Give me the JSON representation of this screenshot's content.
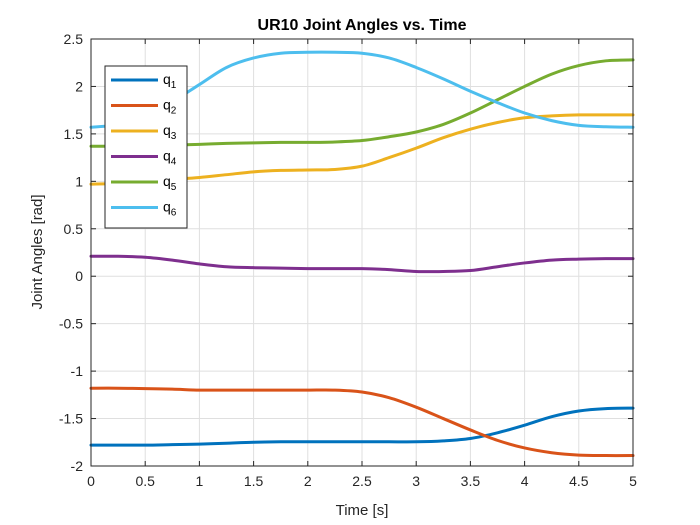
{
  "chart_data": {
    "type": "line",
    "title": "UR10 Joint Angles vs. Time",
    "xlabel": "Time [s]",
    "ylabel": "Joint Angles [rad]",
    "xlim": [
      0,
      5
    ],
    "ylim": [
      -2,
      2.5
    ],
    "xticks": [
      0,
      0.5,
      1,
      1.5,
      2,
      2.5,
      3,
      3.5,
      4,
      4.5,
      5
    ],
    "xtick_labels": [
      "0",
      "0.5",
      "1",
      "1.5",
      "2",
      "2.5",
      "3",
      "3.5",
      "4",
      "4.5",
      "5"
    ],
    "yticks": [
      -2,
      -1.5,
      -1,
      -0.5,
      0,
      0.5,
      1,
      1.5,
      2,
      2.5
    ],
    "ytick_labels": [
      "-2",
      "-1.5",
      "-1",
      "-0.5",
      "0",
      "0.5",
      "1",
      "1.5",
      "2",
      "2.5"
    ],
    "grid": true,
    "legend_position": "top-left",
    "x": [
      0,
      0.25,
      0.5,
      0.75,
      1,
      1.25,
      1.5,
      1.75,
      2,
      2.25,
      2.5,
      2.75,
      3,
      3.25,
      3.5,
      3.75,
      4,
      4.25,
      4.5,
      4.75,
      5
    ],
    "series": [
      {
        "name": "q",
        "subscript": "1",
        "color": "#0072BD",
        "values": [
          -1.78,
          -1.78,
          -1.78,
          -1.775,
          -1.77,
          -1.76,
          -1.75,
          -1.745,
          -1.745,
          -1.745,
          -1.745,
          -1.745,
          -1.745,
          -1.735,
          -1.71,
          -1.65,
          -1.57,
          -1.48,
          -1.42,
          -1.395,
          -1.39
        ]
      },
      {
        "name": "q",
        "subscript": "2",
        "color": "#D95319",
        "values": [
          -1.18,
          -1.18,
          -1.185,
          -1.19,
          -1.2,
          -1.2,
          -1.2,
          -1.2,
          -1.2,
          -1.2,
          -1.22,
          -1.28,
          -1.38,
          -1.5,
          -1.62,
          -1.73,
          -1.81,
          -1.86,
          -1.885,
          -1.89,
          -1.89
        ]
      },
      {
        "name": "q",
        "subscript": "3",
        "color": "#EDB120",
        "values": [
          0.97,
          0.98,
          1.0,
          1.02,
          1.04,
          1.07,
          1.1,
          1.115,
          1.12,
          1.125,
          1.16,
          1.25,
          1.35,
          1.46,
          1.55,
          1.62,
          1.67,
          1.69,
          1.7,
          1.7,
          1.7
        ]
      },
      {
        "name": "q",
        "subscript": "4",
        "color": "#7E2F8E",
        "values": [
          0.21,
          0.21,
          0.2,
          0.17,
          0.13,
          0.1,
          0.09,
          0.085,
          0.08,
          0.08,
          0.08,
          0.07,
          0.05,
          0.05,
          0.06,
          0.1,
          0.14,
          0.17,
          0.18,
          0.185,
          0.185
        ]
      },
      {
        "name": "q",
        "subscript": "5",
        "color": "#77AC30",
        "values": [
          1.37,
          1.37,
          1.37,
          1.38,
          1.39,
          1.4,
          1.405,
          1.41,
          1.41,
          1.415,
          1.43,
          1.47,
          1.52,
          1.6,
          1.72,
          1.86,
          2.0,
          2.13,
          2.22,
          2.27,
          2.28
        ]
      },
      {
        "name": "q",
        "subscript": "6",
        "color": "#4DBEEE",
        "values": [
          1.57,
          1.6,
          1.7,
          1.84,
          2.02,
          2.2,
          2.3,
          2.35,
          2.36,
          2.36,
          2.35,
          2.3,
          2.2,
          2.08,
          1.95,
          1.83,
          1.72,
          1.64,
          1.59,
          1.575,
          1.57
        ]
      }
    ]
  }
}
